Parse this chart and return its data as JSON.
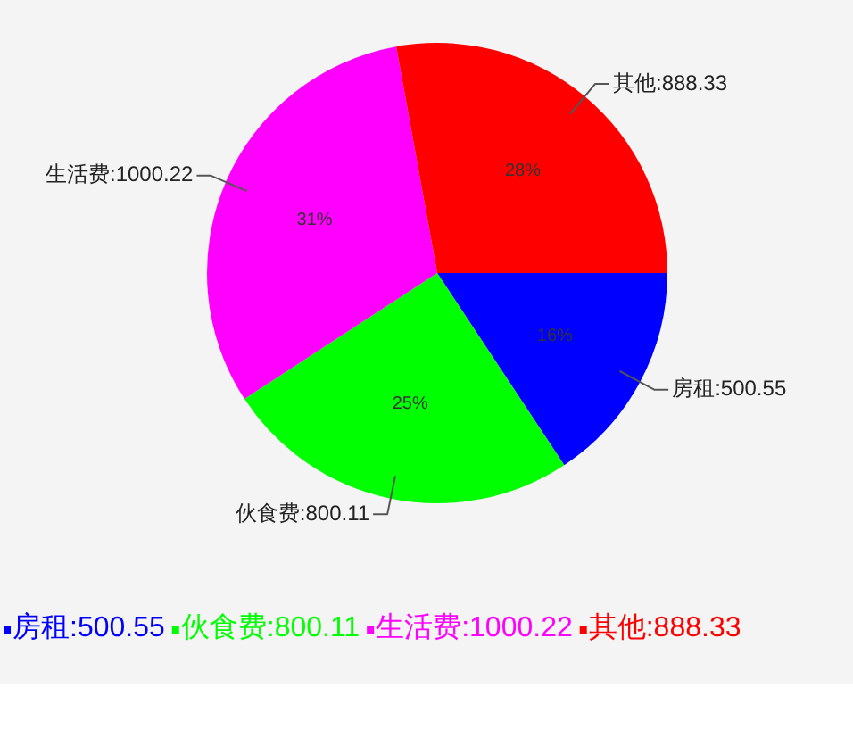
{
  "chart_data": {
    "type": "pie",
    "categories": [
      "房租:500.55",
      "伙食费:800.11",
      "生活费:1000.22",
      "其他:888.33"
    ],
    "values": [
      15.7,
      25.09,
      31.36,
      27.85
    ],
    "colors": [
      "#0000ff",
      "#00ff00",
      "#ff00ff",
      "#ff0000"
    ],
    "value_labels": [
      "16%",
      "25%",
      "31%",
      "28%"
    ],
    "legend": "bottom left"
  }
}
